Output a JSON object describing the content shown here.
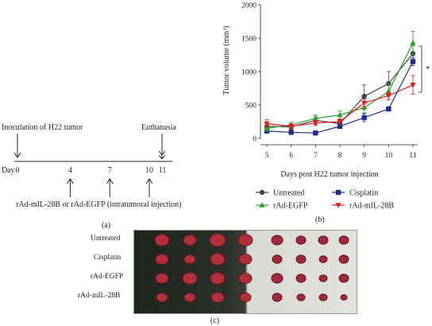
{
  "timeline": {
    "events": [
      {
        "label": "Inoculation of H22 tumor",
        "day": 0
      },
      {
        "label": "Euthanasia",
        "day": 11
      }
    ],
    "axis_prefix": "Day",
    "days": [
      0,
      4,
      7,
      10,
      11
    ],
    "injection_days": [
      4,
      7,
      10
    ],
    "injection_label": "rAd-mIL-28B or rAd-EGFP (intratumoral injection)",
    "panel_label": "(a)"
  },
  "chart_data": {
    "type": "line",
    "title": "",
    "xlabel": "Days post H22 tumor injection",
    "ylabel": "Tumor volume (mm³)",
    "x": [
      5,
      6,
      7,
      8,
      9,
      10,
      11
    ],
    "xlim": [
      5,
      11
    ],
    "ylim": [
      0,
      2000
    ],
    "yticks": [
      0,
      500,
      1000,
      1500,
      2000
    ],
    "legend_position": "bottom",
    "series": [
      {
        "name": "Untreated",
        "color": "#444444",
        "marker": "circle",
        "values": [
          180,
          170,
          270,
          220,
          630,
          820,
          1270
        ],
        "errors": [
          40,
          40,
          60,
          60,
          170,
          180,
          120
        ]
      },
      {
        "name": "Cisplatin",
        "color": "#1f2d8a",
        "marker": "square",
        "values": [
          110,
          90,
          80,
          180,
          310,
          440,
          1150
        ],
        "errors": [
          20,
          15,
          15,
          20,
          60,
          30,
          60
        ]
      },
      {
        "name": "rAd-EGFP",
        "color": "#2ca02c",
        "marker": "triangle-up",
        "values": [
          150,
          200,
          300,
          350,
          460,
          700,
          1430
        ],
        "errors": [
          40,
          40,
          50,
          60,
          80,
          120,
          170
        ]
      },
      {
        "name": "rAd-mIL-28B",
        "color": "#e31a1c",
        "marker": "triangle-down",
        "values": [
          220,
          180,
          230,
          250,
          530,
          640,
          800
        ],
        "errors": [
          60,
          40,
          40,
          40,
          60,
          60,
          140
        ]
      }
    ],
    "annotation": "*",
    "panel_label": "(b)"
  },
  "photo": {
    "row_labels": [
      "Untreated",
      "Cisplatin",
      "rAd-EGFP",
      "rAd-mIL-28B"
    ],
    "panel_label": "(c)"
  }
}
